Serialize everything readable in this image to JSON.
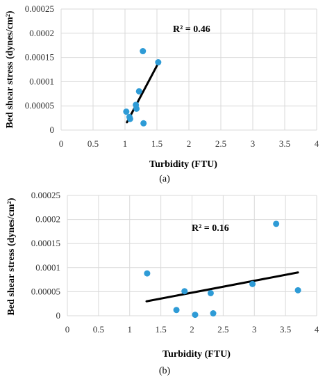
{
  "colors": {
    "point": "#2e9bd6",
    "trendline": "#000000",
    "grid": "#d9d9d9"
  },
  "chart_data": [
    {
      "type": "scatter",
      "caption": "(a)",
      "xlabel": "Turbidity (FTU)",
      "ylabel": "Bed shear stress (dynes/cm²)",
      "annotation": "R² = 0.46",
      "xlim": [
        0,
        4
      ],
      "ylim": [
        0,
        0.00025
      ],
      "xticks": [
        "0",
        "0.5",
        "1",
        "1.5",
        "2",
        "2.5",
        "3",
        "3.5",
        "4"
      ],
      "yticks": [
        "0",
        "0.00005",
        "0.0001",
        "0.00015",
        "0.0002",
        "0.00025"
      ],
      "grid": true,
      "points": [
        {
          "x": 1.02,
          "y": 3.8e-05
        },
        {
          "x": 1.07,
          "y": 2.7e-05
        },
        {
          "x": 1.08,
          "y": 2.3e-05
        },
        {
          "x": 1.17,
          "y": 5.2e-05
        },
        {
          "x": 1.18,
          "y": 4.4e-05
        },
        {
          "x": 1.22,
          "y": 8e-05
        },
        {
          "x": 1.28,
          "y": 0.000163
        },
        {
          "x": 1.29,
          "y": 1.4e-05
        },
        {
          "x": 1.52,
          "y": 0.00014
        }
      ],
      "trendline": {
        "x": [
          1.03,
          1.52
        ],
        "y": [
          1.6e-05,
          0.000138
        ]
      }
    },
    {
      "type": "scatter",
      "caption": "(b)",
      "xlabel": "Turbidity (FTU)",
      "ylabel": "Bed shear stress (dynes/cm²)",
      "annotation": "R² = 0.16",
      "xlim": [
        0,
        4
      ],
      "ylim": [
        0,
        0.00025
      ],
      "xticks": [
        "0",
        "0.5",
        "1",
        "1.5",
        "2",
        "2.5",
        "3",
        "3.5",
        "4"
      ],
      "yticks": [
        "0",
        "0.00005",
        "0.0001",
        "0.00015",
        "0.0002",
        "0.00025"
      ],
      "grid": true,
      "points": [
        {
          "x": 1.28,
          "y": 8.8e-05
        },
        {
          "x": 1.75,
          "y": 1.2e-05
        },
        {
          "x": 1.88,
          "y": 5.1e-05
        },
        {
          "x": 2.05,
          "y": 2e-06
        },
        {
          "x": 2.3,
          "y": 4.7e-05
        },
        {
          "x": 2.34,
          "y": 5e-06
        },
        {
          "x": 2.97,
          "y": 6.6e-05
        },
        {
          "x": 3.35,
          "y": 0.000191
        },
        {
          "x": 3.7,
          "y": 5.3e-05
        }
      ],
      "trendline": {
        "x": [
          1.27,
          3.7
        ],
        "y": [
          3e-05,
          9e-05
        ]
      }
    }
  ]
}
